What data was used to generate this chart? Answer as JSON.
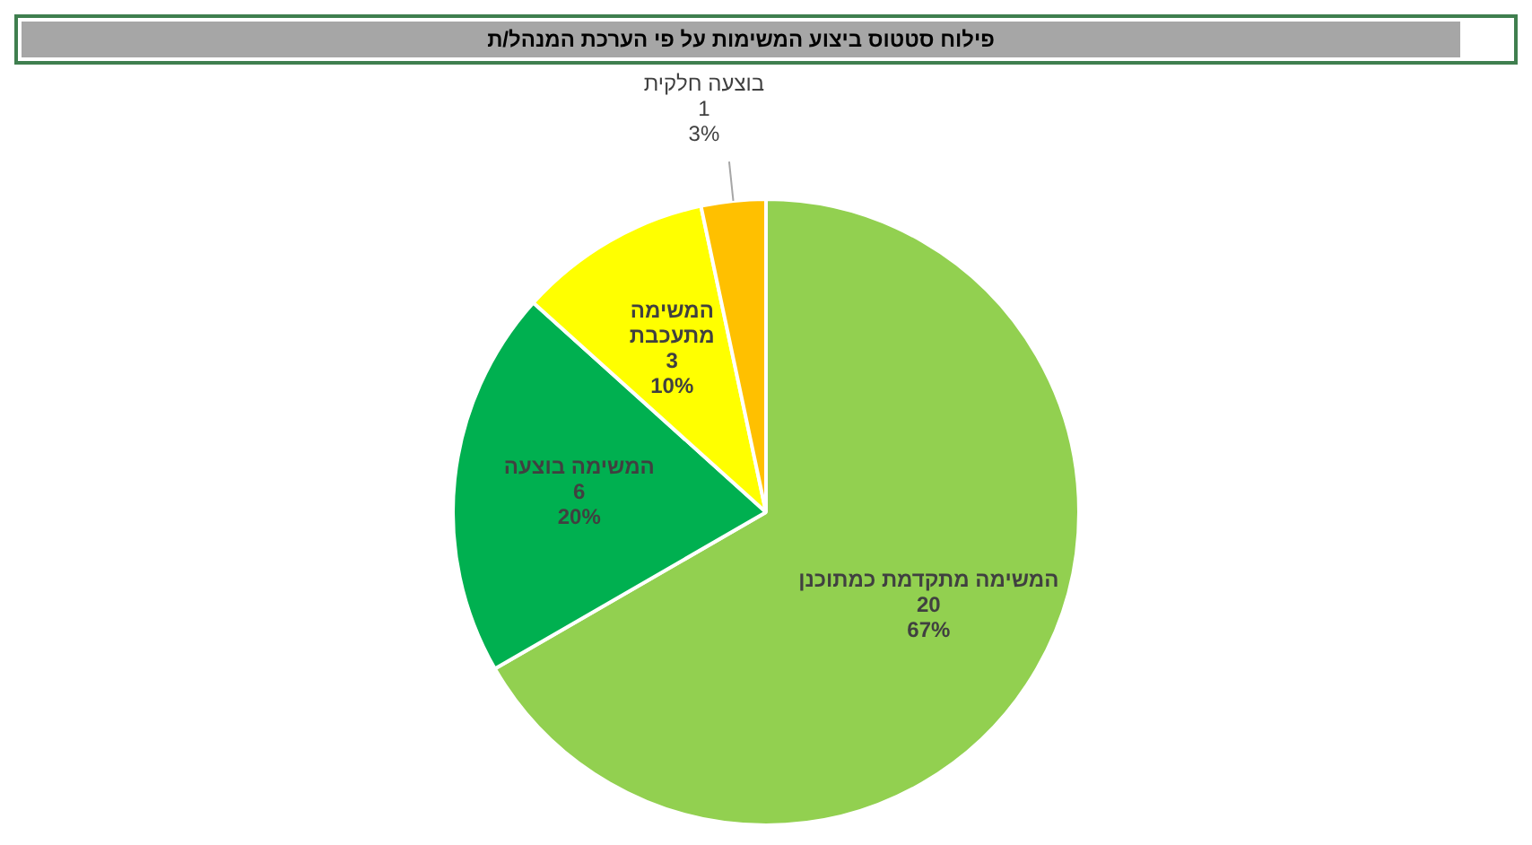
{
  "chart_data": {
    "type": "pie",
    "title": "פילוח סטטוס ביצוע המשימות על פי הערכת המנהל/ת",
    "categories": [
      "המשימה מתקדמת כמתוכנן",
      "המשימה בוצעה",
      "המשימה מתעכבת",
      "בוצעה חלקית"
    ],
    "values": [
      20,
      6,
      3,
      1
    ],
    "colors": [
      "#92d050",
      "#00b050",
      "#ffff00",
      "#ffc000"
    ],
    "value_labels": [
      "20\n67%",
      "6\n20%",
      "3\n10%",
      "1\n3%"
    ],
    "legend": false
  }
}
